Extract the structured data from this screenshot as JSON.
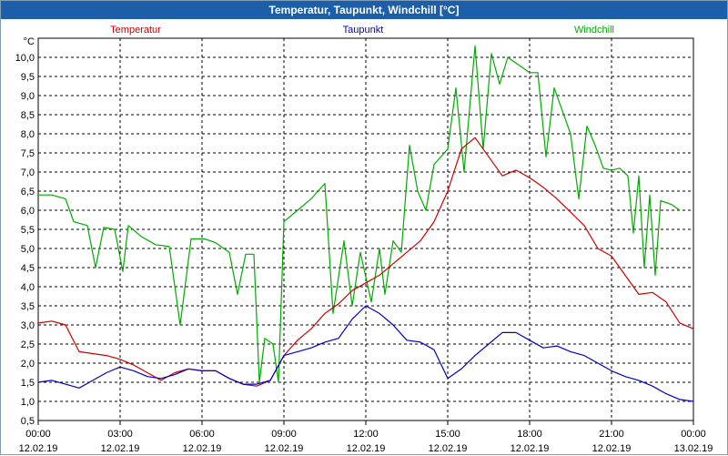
{
  "window": {
    "title": "Temperatur, Taupunkt, Windchill [°C]"
  },
  "chart_data": {
    "type": "line",
    "title": "Temperatur, Taupunkt, Windchill [°C]",
    "ylabel": "°C",
    "xlabel": "",
    "ylim": [
      0.5,
      10.5
    ],
    "xlim_hours": [
      0,
      24
    ],
    "grid": true,
    "legend_placement": "top",
    "y_ticks": [
      "1,0",
      "1,5",
      "2,0",
      "2,5",
      "3,0",
      "3,5",
      "4,0",
      "4,5",
      "5,0",
      "5,5",
      "6,0",
      "6,5",
      "7,0",
      "7,5",
      "8,0",
      "8,5",
      "9,0",
      "9,5",
      "10,0"
    ],
    "x_ticks": [
      {
        "time": "00:00",
        "date": "12.02.19"
      },
      {
        "time": "03:00",
        "date": "12.02.19"
      },
      {
        "time": "06:00",
        "date": "12.02.19"
      },
      {
        "time": "09:00",
        "date": "12.02.19"
      },
      {
        "time": "12:00",
        "date": "12.02.19"
      },
      {
        "time": "15:00",
        "date": "12.02.19"
      },
      {
        "time": "18:00",
        "date": "12.02.19"
      },
      {
        "time": "21:00",
        "date": "12.02.19"
      },
      {
        "time": "00:00",
        "date": "13.02.19"
      }
    ],
    "series": [
      {
        "name": "Temperatur",
        "color": "#cc0000",
        "points": [
          [
            0,
            3.05
          ],
          [
            0.5,
            3.1
          ],
          [
            1,
            3.0
          ],
          [
            1.5,
            2.3
          ],
          [
            2,
            2.25
          ],
          [
            2.5,
            2.2
          ],
          [
            3,
            2.1
          ],
          [
            3.5,
            1.95
          ],
          [
            4,
            1.75
          ],
          [
            4.5,
            1.55
          ],
          [
            5,
            1.75
          ],
          [
            5.5,
            1.85
          ],
          [
            6,
            1.8
          ],
          [
            6.5,
            1.8
          ],
          [
            7,
            1.6
          ],
          [
            7.5,
            1.45
          ],
          [
            8,
            1.4
          ],
          [
            8.5,
            1.55
          ],
          [
            9,
            2.2
          ],
          [
            9.5,
            2.6
          ],
          [
            10,
            2.9
          ],
          [
            10.5,
            3.3
          ],
          [
            11,
            3.55
          ],
          [
            11.5,
            3.9
          ],
          [
            12,
            4.1
          ],
          [
            12.5,
            4.3
          ],
          [
            13,
            4.6
          ],
          [
            13.5,
            4.9
          ],
          [
            14,
            5.2
          ],
          [
            14.5,
            5.7
          ],
          [
            15,
            6.5
          ],
          [
            15.5,
            7.6
          ],
          [
            16,
            7.9
          ],
          [
            16.5,
            7.4
          ],
          [
            17,
            6.9
          ],
          [
            17.5,
            7.05
          ],
          [
            18,
            6.85
          ],
          [
            18.5,
            6.6
          ],
          [
            19,
            6.3
          ],
          [
            19.5,
            5.95
          ],
          [
            20,
            5.6
          ],
          [
            20.5,
            5.0
          ],
          [
            21,
            4.8
          ],
          [
            21.5,
            4.3
          ],
          [
            22,
            3.8
          ],
          [
            22.5,
            3.85
          ],
          [
            23,
            3.6
          ],
          [
            23.5,
            3.05
          ],
          [
            24,
            2.9
          ]
        ]
      },
      {
        "name": "Taupunkt",
        "color": "#0000cc",
        "points": [
          [
            0,
            1.5
          ],
          [
            0.5,
            1.55
          ],
          [
            1,
            1.45
          ],
          [
            1.5,
            1.35
          ],
          [
            2,
            1.55
          ],
          [
            2.5,
            1.75
          ],
          [
            3,
            1.9
          ],
          [
            3.5,
            1.8
          ],
          [
            4,
            1.65
          ],
          [
            4.5,
            1.6
          ],
          [
            5,
            1.7
          ],
          [
            5.5,
            1.85
          ],
          [
            6,
            1.8
          ],
          [
            6.5,
            1.8
          ],
          [
            7,
            1.6
          ],
          [
            7.5,
            1.45
          ],
          [
            8,
            1.45
          ],
          [
            8.5,
            1.55
          ],
          [
            9,
            2.2
          ],
          [
            9.5,
            2.3
          ],
          [
            10,
            2.4
          ],
          [
            10.5,
            2.55
          ],
          [
            11,
            2.65
          ],
          [
            11.5,
            3.15
          ],
          [
            12,
            3.5
          ],
          [
            12.5,
            3.3
          ],
          [
            13,
            3.0
          ],
          [
            13.5,
            2.6
          ],
          [
            14,
            2.55
          ],
          [
            14.5,
            2.35
          ],
          [
            15,
            1.6
          ],
          [
            15.5,
            1.85
          ],
          [
            16,
            2.2
          ],
          [
            16.5,
            2.5
          ],
          [
            17,
            2.8
          ],
          [
            17.5,
            2.8
          ],
          [
            18,
            2.6
          ],
          [
            18.5,
            2.4
          ],
          [
            19,
            2.45
          ],
          [
            19.5,
            2.3
          ],
          [
            20,
            2.2
          ],
          [
            20.5,
            2.0
          ],
          [
            21,
            1.8
          ],
          [
            21.5,
            1.65
          ],
          [
            22,
            1.55
          ],
          [
            22.5,
            1.4
          ],
          [
            23,
            1.2
          ],
          [
            23.5,
            1.05
          ],
          [
            24,
            1.0
          ]
        ]
      },
      {
        "name": "Windchill",
        "color": "#00aa00",
        "points": [
          [
            0,
            6.4
          ],
          [
            0.5,
            6.4
          ],
          [
            1,
            6.3
          ],
          [
            1.3,
            5.7
          ],
          [
            1.8,
            5.6
          ],
          [
            2.1,
            4.5
          ],
          [
            2.4,
            5.55
          ],
          [
            2.8,
            5.5
          ],
          [
            3.1,
            4.4
          ],
          [
            3.3,
            5.6
          ],
          [
            3.8,
            5.3
          ],
          [
            4.3,
            5.1
          ],
          [
            4.8,
            5.05
          ],
          [
            5.2,
            3.0
          ],
          [
            5.6,
            5.25
          ],
          [
            6.1,
            5.25
          ],
          [
            6.5,
            5.15
          ],
          [
            7.0,
            4.9
          ],
          [
            7.3,
            3.8
          ],
          [
            7.6,
            4.85
          ],
          [
            7.9,
            4.85
          ],
          [
            8.1,
            1.5
          ],
          [
            8.3,
            2.65
          ],
          [
            8.6,
            2.5
          ],
          [
            8.8,
            1.5
          ],
          [
            9.0,
            5.7
          ],
          [
            9.5,
            6.0
          ],
          [
            10.0,
            6.3
          ],
          [
            10.5,
            6.7
          ],
          [
            10.8,
            3.3
          ],
          [
            11.2,
            5.2
          ],
          [
            11.5,
            3.5
          ],
          [
            11.8,
            4.9
          ],
          [
            12.2,
            3.6
          ],
          [
            12.5,
            5.0
          ],
          [
            12.7,
            3.8
          ],
          [
            13.0,
            5.2
          ],
          [
            13.3,
            4.9
          ],
          [
            13.6,
            7.7
          ],
          [
            13.9,
            6.5
          ],
          [
            14.2,
            6.0
          ],
          [
            14.5,
            7.2
          ],
          [
            15.0,
            7.6
          ],
          [
            15.3,
            9.2
          ],
          [
            15.6,
            7.0
          ],
          [
            16.0,
            10.3
          ],
          [
            16.3,
            7.6
          ],
          [
            16.6,
            10.1
          ],
          [
            16.9,
            9.3
          ],
          [
            17.2,
            10.0
          ],
          [
            17.6,
            9.8
          ],
          [
            18.0,
            9.6
          ],
          [
            18.3,
            9.6
          ],
          [
            18.6,
            7.4
          ],
          [
            18.9,
            9.2
          ],
          [
            19.2,
            8.6
          ],
          [
            19.5,
            8.0
          ],
          [
            19.8,
            6.3
          ],
          [
            20.1,
            8.2
          ],
          [
            20.4,
            7.7
          ],
          [
            20.7,
            7.1
          ],
          [
            21.0,
            7.05
          ],
          [
            21.3,
            7.1
          ],
          [
            21.6,
            6.9
          ],
          [
            21.8,
            5.4
          ],
          [
            22.0,
            6.9
          ],
          [
            22.2,
            4.5
          ],
          [
            22.4,
            6.4
          ],
          [
            22.6,
            4.3
          ],
          [
            22.8,
            6.25
          ],
          [
            23.2,
            6.15
          ],
          [
            23.5,
            6.0
          ]
        ]
      }
    ]
  }
}
